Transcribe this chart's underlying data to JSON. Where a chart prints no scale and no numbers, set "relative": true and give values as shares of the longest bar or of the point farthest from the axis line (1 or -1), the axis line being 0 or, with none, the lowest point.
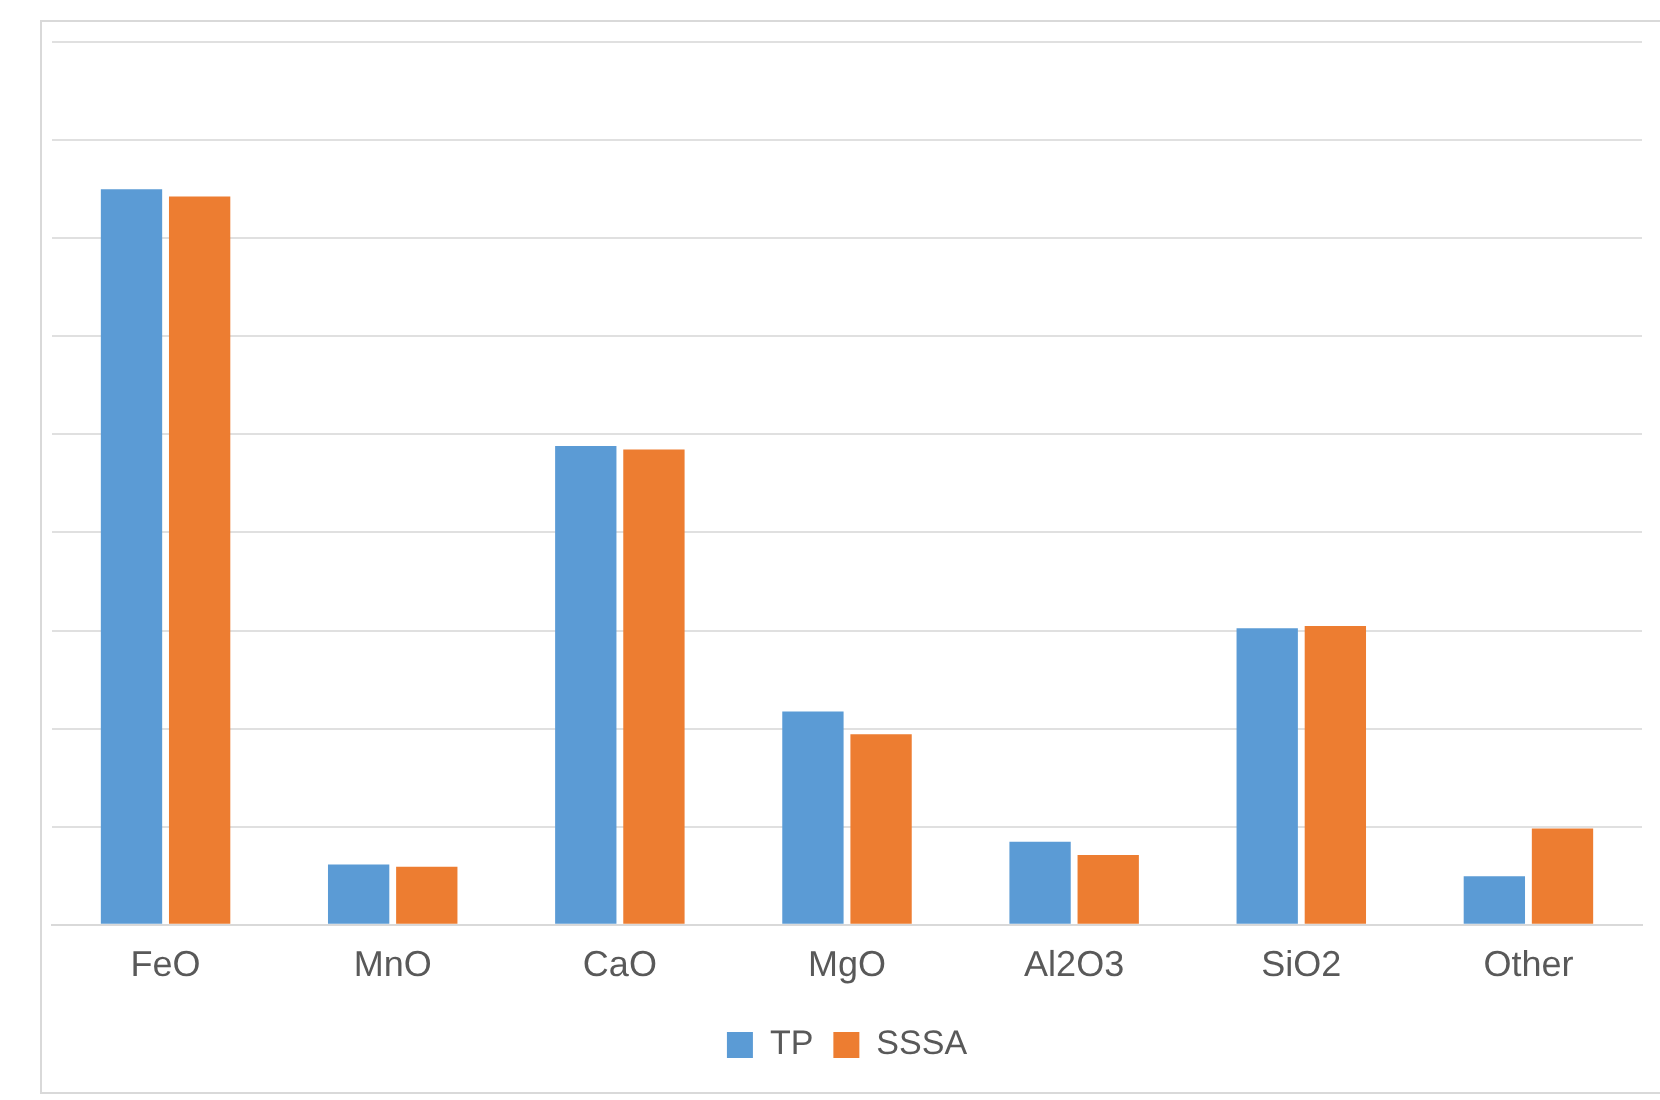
{
  "chart_data": {
    "type": "bar",
    "relative": true,
    "categories": [
      "FeO",
      "MnO",
      "CaO",
      "MgO",
      "Al2O3",
      "SiO2",
      "Other"
    ],
    "series": [
      {
        "name": "TP",
        "color": "#5b9bd5",
        "values": [
          1,
          0.082,
          0.651,
          0.29,
          0.113,
          0.403,
          0.066
        ]
      },
      {
        "name": "SSSA",
        "color": "#ed7d31",
        "values": [
          0.99,
          0.079,
          0.646,
          0.259,
          0.095,
          0.406,
          0.131
        ]
      }
    ],
    "grid": "y",
    "legend": "bottom"
  }
}
